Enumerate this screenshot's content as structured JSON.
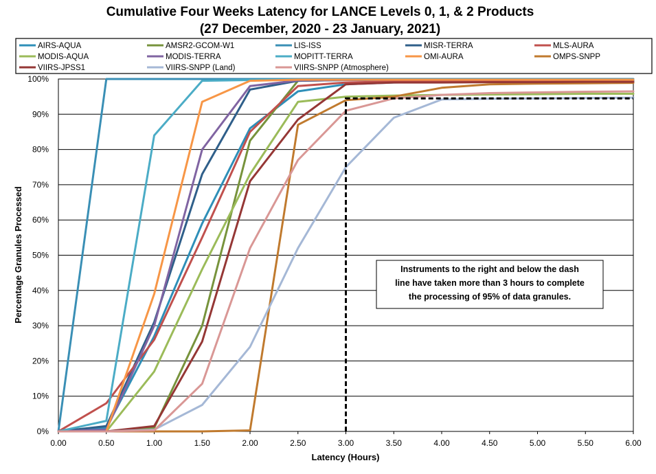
{
  "chart_data": {
    "type": "line",
    "title": "Cumulative Four Weeks Latency  for LANCE Levels 0, 1, & 2 Products",
    "subtitle": "(27 December, 2020  -  23 January, 2021)",
    "xlabel": "Latency (Hours)",
    "ylabel": "Percentage Granules Processed",
    "xlim": [
      0,
      6
    ],
    "ylim": [
      0,
      100
    ],
    "x_ticks": [
      "0.00",
      "0.50",
      "1.00",
      "1.50",
      "2.00",
      "2.50",
      "3.00",
      "3.50",
      "4.00",
      "4.50",
      "5.00",
      "5.50",
      "6.00"
    ],
    "y_ticks": [
      "0%",
      "10%",
      "20%",
      "30%",
      "40%",
      "50%",
      "60%",
      "70%",
      "80%",
      "90%",
      "100%"
    ],
    "grid": "horizontal",
    "legend_position": "top",
    "x": [
      0,
      0.5,
      1,
      1.5,
      2,
      2.5,
      3,
      3.5,
      4,
      4.5,
      5,
      5.5,
      6
    ],
    "series": [
      {
        "name": "AIRS-AQUA",
        "color": "#2e8fb8",
        "values": [
          0,
          1,
          27,
          59,
          86,
          96.5,
          98.5,
          99,
          99.2,
          99.3,
          99.4,
          99.5,
          99.5
        ]
      },
      {
        "name": "AMSR2-GCOM-W1",
        "color": "#77933c",
        "values": [
          0,
          0,
          1,
          30,
          82.5,
          99.5,
          99.7,
          99.8,
          99.8,
          99.8,
          99.8,
          99.8,
          99.8
        ]
      },
      {
        "name": "LIS-ISS",
        "color": "#3a8fb5",
        "values": [
          0,
          100,
          100,
          100,
          100,
          100,
          100,
          100,
          100,
          100,
          100,
          100,
          100
        ]
      },
      {
        "name": "MISR-TERRA",
        "color": "#2f5f8a",
        "values": [
          0,
          1.5,
          31,
          73,
          97,
          99.5,
          99.7,
          99.8,
          99.8,
          99.8,
          99.8,
          99.8,
          99.8
        ]
      },
      {
        "name": "MLS-AURA",
        "color": "#c0504d",
        "values": [
          0,
          8,
          26,
          55,
          85,
          98,
          99,
          99.3,
          99.4,
          99.5,
          99.6,
          99.7,
          99.7
        ]
      },
      {
        "name": "MODIS-AQUA",
        "color": "#9bbb59",
        "values": [
          0,
          0,
          17,
          46,
          73,
          93.5,
          95,
          95.3,
          95.5,
          95.6,
          95.7,
          95.8,
          95.8
        ]
      },
      {
        "name": "MODIS-TERRA",
        "color": "#8064a2",
        "values": [
          0,
          0.5,
          30,
          80,
          98,
          99.6,
          99.7,
          99.8,
          99.8,
          99.8,
          99.8,
          99.8,
          99.8
        ]
      },
      {
        "name": "MOPITT-TERRA",
        "color": "#4bacc6",
        "values": [
          0,
          3,
          84,
          99.5,
          99.7,
          99.8,
          99.8,
          99.8,
          99.8,
          99.8,
          99.8,
          99.8,
          99.8
        ]
      },
      {
        "name": "OMI-AURA",
        "color": "#f79646",
        "values": [
          0,
          0,
          39,
          93.5,
          99.5,
          99.8,
          99.8,
          99.8,
          99.8,
          99.8,
          99.8,
          99.8,
          99.8
        ]
      },
      {
        "name": "OMPS-SNPP",
        "color": "#c07a2e",
        "values": [
          0,
          0,
          0,
          0,
          0.3,
          87,
          94,
          95,
          97.5,
          98.5,
          98.7,
          98.8,
          98.9
        ]
      },
      {
        "name": "VIIRS-JPSS1",
        "color": "#953735",
        "values": [
          0,
          0,
          1.5,
          25.5,
          71,
          88.5,
          98.5,
          99,
          99,
          99.1,
          99.1,
          99.2,
          99.2
        ]
      },
      {
        "name": "VIIRS-SNPP (Land)",
        "color": "#a5b8d6",
        "values": [
          0,
          0,
          0.5,
          7.5,
          24,
          52,
          75,
          89,
          94.2,
          94.4,
          94.5,
          94.6,
          94.7
        ]
      },
      {
        "name": "VIIRS-SNPP (Atmosphere)",
        "color": "#d99795",
        "values": [
          0,
          0,
          0.3,
          13.5,
          52,
          77,
          91,
          94.5,
          95.5,
          96,
          96.2,
          96.4,
          96.5
        ]
      }
    ],
    "threshold_line": {
      "x": 3,
      "y": 94.5,
      "style": "dashed",
      "color": "#000000"
    },
    "annotation": [
      "Instruments to the right and below the dash",
      "line have taken more than 3 hours to complete",
      "the processing of 95% of data granules."
    ]
  }
}
